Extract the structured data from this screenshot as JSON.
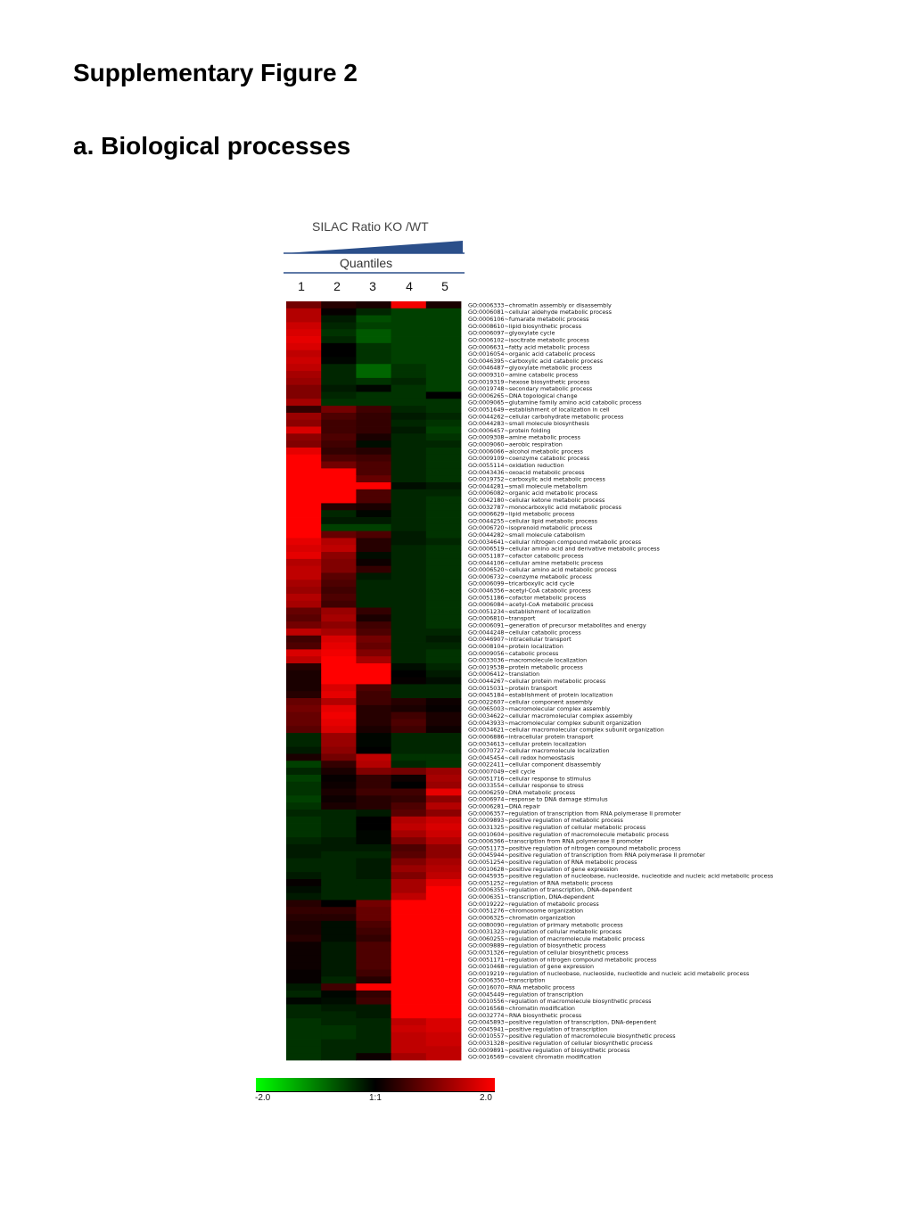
{
  "figure_title": "Supplementary Figure 2",
  "panel_title": "a. Biological processes",
  "header": {
    "title": "SILAC Ratio KO /WT",
    "subheader": "Quantiles",
    "wedge_color": "#2b4f8a"
  },
  "chart_data": {
    "type": "heatmap",
    "title": "",
    "columns": [
      "1",
      "2",
      "3",
      "4",
      "5"
    ],
    "color_scale": {
      "min": -2.0,
      "mid": 0,
      "max": 2.0,
      "labels": [
        "-2.0",
        "1:1",
        "2.0"
      ],
      "low_color": "#00ff00",
      "mid_color": "#000000",
      "high_color": "#ff0000"
    },
    "rows": [
      "GO:0006333~chromatin assembly or disassembly",
      "GO:0006081~cellular aldehyde metabolic process",
      "GO:0006106~fumarate metabolic process",
      "GO:0008610~lipid biosynthetic process",
      "GO:0006097~glyoxylate cycle",
      "GO:0006102~isocitrate metabolic process",
      "GO:0006631~fatty acid metabolic process",
      "GO:0016054~organic acid catabolic process",
      "GO:0046395~carboxylic acid catabolic process",
      "GO:0046487~glyoxylate metabolic process",
      "GO:0009310~amine catabolic process",
      "GO:0019319~hexose biosynthetic process",
      "GO:0019748~secondary metabolic process",
      "GO:0006265~DNA topological change",
      "GO:0009065~glutamine family amino acid catabolic process",
      "GO:0051649~establishment of localization in cell",
      "GO:0044262~cellular carbohydrate metabolic process",
      "GO:0044283~small molecule biosynthesis",
      "GO:0006457~protein folding",
      "GO:0009308~amine metabolic process",
      "GO:0009060~aerobic respiration",
      "GO:0006066~alcohol metabolic process",
      "GO:0009109~coenzyme catabolic process",
      "GO:0055114~oxidation reduction",
      "GO:0043436~oxoacid metabolic process",
      "GO:0019752~carboxylic acid metabolic process",
      "GO:0044281~small molecule metabolism",
      "GO:0006082~organic acid metabolic process",
      "GO:0042180~cellular ketone metabolic process",
      "GO:0032787~monocarboxylic acid metabolic process",
      "GO:0006629~lipid metabolic process",
      "GO:0044255~cellular lipid metabolic process",
      "GO:0006720~isoprenoid metabolic process",
      "GO:0044282~small molecule catabolism",
      "GO:0034641~cellular nitrogen compound metabolic process",
      "GO:0006519~cellular amino acid and derivative metabolic process",
      "GO:0051187~cofactor catabolic process",
      "GO:0044106~cellular amine metabolic process",
      "GO:0006520~cellular amino acid metabolic process",
      "GO:0006732~coenzyme metabolic process",
      "GO:0006099~tricarboxylic acid cycle",
      "GO:0046356~acetyl-CoA catabolic process",
      "GO:0051186~cofactor metabolic process",
      "GO:0006084~acetyl-CoA metabolic process",
      "GO:0051234~establishment of localization",
      "GO:0006810~transport",
      "GO:0006091~generation of precursor metabolites and energy",
      "GO:0044248~cellular catabolic process",
      "GO:0046907~intracellular transport",
      "GO:0008104~protein localization",
      "GO:0009056~catabolic process",
      "GO:0033036~macromolecule localization",
      "GO:0019538~protein metabolic process",
      "GO:0006412~translation",
      "GO:0044267~cellular protein metabolic process",
      "GO:0015031~protein transport",
      "GO:0045184~establishment of protein localization",
      "GO:0022607~cellular component assembly",
      "GO:0065003~macromolecular complex assembly",
      "GO:0034622~cellular macromolecular complex assembly",
      "GO:0043933~macromolecular complex subunit organization",
      "GO:0034621~cellular macromolecular complex subunit organization",
      "GO:0006886~intracellular protein transport",
      "GO:0034613~cellular protein localization",
      "GO:0070727~cellular macromolecule localization",
      "GO:0045454~cell redox homeostasis",
      "GO:0022411~cellular component disassembly",
      "GO:0007049~cell cycle",
      "GO:0051716~cellular response to stimulus",
      "GO:0033554~cellular response to stress",
      "GO:0006259~DNA metabolic process",
      "GO:0006974~response to DNA damage stimulus",
      "GO:0006281~DNA repair",
      "GO:0006357~regulation of transcription from RNA polymerase II promoter",
      "GO:0009893~positive regulation of metabolic process",
      "GO:0031325~positive regulation of cellular metabolic process",
      "GO:0010604~positive regulation of macromolecule metabolic process",
      "GO:0006366~transcription from RNA polymerase II promoter",
      "GO:0051173~positive regulation of nitrogen compound metabolic process",
      "GO:0045944~positive regulation of transcription from RNA polymerase II promoter",
      "GO:0051254~positive regulation of RNA metabolic process",
      "GO:0010628~positive regulation of gene expression",
      "GO:0045935~positive regulation of nucleobase, nucleoside, nucleotide and nucleic acid metabolic process",
      "GO:0051252~regulation of RNA metabolic process",
      "GO:0006355~regulation of transcription, DNA-dependent",
      "GO:0006351~transcription, DNA-dependent",
      "GO:0019222~regulation of metabolic process",
      "GO:0051276~chromosome organization",
      "GO:0006325~chromatin organization",
      "GO:0080090~regulation of primary metabolic process",
      "GO:0031323~regulation of cellular metabolic process",
      "GO:0060255~regulation of macromolecule metabolic process",
      "GO:0009889~regulation of biosynthetic process",
      "GO:0031326~regulation of cellular biosynthetic process",
      "GO:0051171~regulation of nitrogen compound metabolic process",
      "GO:0010468~regulation of gene expression",
      "GO:0019219~regulation of nucleobase, nucleoside, nucleotide and nucleic acid metabolic process",
      "GO:0006350~transcription",
      "GO:0016070~RNA metabolic process",
      "GO:0045449~regulation of transcription",
      "GO:0010556~regulation of macromolecule biosynthetic process",
      "GO:0016568~chromatin modification",
      "GO:0032774~RNA biosynthetic process",
      "GO:0045893~positive regulation of transcription, DNA-dependent",
      "GO:0045941~positive regulation of transcription",
      "GO:0010557~positive regulation of macromolecule biosynthetic process",
      "GO:0031328~positive regulation of cellular biosynthetic process",
      "GO:0009891~positive regulation of biosynthetic process",
      "GO:0016569~covalent chromatin modification"
    ],
    "values": [
      [
        0.9,
        0.3,
        0.2,
        1.9,
        0.2
      ],
      [
        1.4,
        0.05,
        -0.3,
        -0.5,
        -0.5
      ],
      [
        1.4,
        -0.2,
        -0.6,
        -0.5,
        -0.5
      ],
      [
        1.6,
        -0.3,
        -0.5,
        -0.5,
        -0.5
      ],
      [
        1.7,
        -0.4,
        -0.7,
        -0.5,
        -0.5
      ],
      [
        1.8,
        -0.3,
        -0.7,
        -0.5,
        -0.5
      ],
      [
        1.7,
        0.0,
        -0.4,
        -0.5,
        -0.5
      ],
      [
        1.5,
        0.0,
        -0.4,
        -0.5,
        -0.5
      ],
      [
        1.6,
        -0.05,
        -0.4,
        -0.5,
        -0.5
      ],
      [
        1.5,
        -0.3,
        -0.8,
        -0.4,
        -0.5
      ],
      [
        1.3,
        -0.3,
        -0.8,
        -0.4,
        -0.5
      ],
      [
        1.2,
        -0.3,
        -0.4,
        -0.3,
        -0.5
      ],
      [
        1.0,
        -0.2,
        -0.05,
        -0.4,
        -0.5
      ],
      [
        1.0,
        -0.3,
        -0.4,
        -0.4,
        0.0
      ],
      [
        1.3,
        -0.4,
        -0.4,
        -0.4,
        -0.4
      ],
      [
        0.4,
        0.9,
        0.5,
        -0.3,
        -0.4
      ],
      [
        1.2,
        0.6,
        0.4,
        -0.2,
        -0.3
      ],
      [
        1.1,
        0.5,
        0.4,
        -0.3,
        -0.4
      ],
      [
        1.7,
        0.5,
        0.4,
        -0.2,
        -0.5
      ],
      [
        1.1,
        0.6,
        0.2,
        -0.3,
        -0.4
      ],
      [
        1.0,
        0.5,
        -0.1,
        -0.3,
        -0.3
      ],
      [
        1.8,
        0.4,
        0.3,
        -0.3,
        -0.4
      ],
      [
        2.0,
        0.6,
        0.5,
        -0.3,
        -0.4
      ],
      [
        2.0,
        0.9,
        0.6,
        -0.3,
        -0.4
      ],
      [
        2.0,
        2.0,
        0.6,
        -0.3,
        -0.4
      ],
      [
        2.0,
        2.0,
        0.8,
        -0.3,
        -0.4
      ],
      [
        2.0,
        2.0,
        2.0,
        -0.1,
        -0.2
      ],
      [
        2.0,
        2.0,
        0.6,
        -0.3,
        -0.3
      ],
      [
        2.0,
        2.0,
        0.6,
        -0.3,
        -0.4
      ],
      [
        2.0,
        0.3,
        0.2,
        -0.3,
        -0.4
      ],
      [
        2.0,
        -0.3,
        -0.05,
        -0.3,
        -0.4
      ],
      [
        2.0,
        -0.2,
        -0.2,
        -0.3,
        -0.4
      ],
      [
        2.0,
        -0.5,
        -0.5,
        -0.3,
        -0.4
      ],
      [
        2.0,
        0.8,
        0.6,
        -0.2,
        -0.4
      ],
      [
        1.8,
        1.4,
        0.3,
        -0.2,
        -0.3
      ],
      [
        1.7,
        1.5,
        0.3,
        -0.3,
        -0.4
      ],
      [
        1.8,
        1.1,
        -0.1,
        -0.3,
        -0.4
      ],
      [
        1.4,
        1.0,
        0.1,
        -0.3,
        -0.4
      ],
      [
        1.5,
        1.0,
        0.4,
        -0.3,
        -0.4
      ],
      [
        1.5,
        0.7,
        -0.2,
        -0.3,
        -0.4
      ],
      [
        1.3,
        0.6,
        -0.3,
        -0.3,
        -0.4
      ],
      [
        1.2,
        0.5,
        -0.3,
        -0.3,
        -0.4
      ],
      [
        1.4,
        0.6,
        -0.3,
        -0.3,
        -0.4
      ],
      [
        1.3,
        0.5,
        -0.3,
        -0.3,
        -0.4
      ],
      [
        0.8,
        1.2,
        0.4,
        -0.3,
        -0.4
      ],
      [
        0.7,
        1.3,
        0.2,
        -0.3,
        -0.4
      ],
      [
        0.9,
        1.1,
        0.5,
        -0.3,
        -0.4
      ],
      [
        1.5,
        1.3,
        0.6,
        -0.3,
        -0.3
      ],
      [
        0.5,
        1.7,
        0.9,
        -0.3,
        -0.2
      ],
      [
        0.6,
        1.8,
        0.8,
        -0.3,
        -0.3
      ],
      [
        1.7,
        1.9,
        1.0,
        -0.3,
        -0.4
      ],
      [
        1.5,
        2.0,
        1.3,
        -0.3,
        -0.4
      ],
      [
        0.3,
        2.0,
        2.0,
        -0.1,
        -0.3
      ],
      [
        0.2,
        2.0,
        2.0,
        0.0,
        -0.2
      ],
      [
        0.2,
        2.0,
        2.0,
        0.05,
        -0.1
      ],
      [
        0.2,
        1.7,
        0.6,
        -0.3,
        -0.3
      ],
      [
        0.3,
        1.8,
        0.5,
        -0.3,
        -0.3
      ],
      [
        0.8,
        1.4,
        0.5,
        0.3,
        0.1
      ],
      [
        0.9,
        1.8,
        0.3,
        0.2,
        0.05
      ],
      [
        0.8,
        1.9,
        0.3,
        0.5,
        0.2
      ],
      [
        0.8,
        1.8,
        0.3,
        0.6,
        0.2
      ],
      [
        0.7,
        1.7,
        0.2,
        0.5,
        0.1
      ],
      [
        -0.3,
        1.2,
        -0.05,
        -0.3,
        -0.3
      ],
      [
        -0.3,
        1.2,
        -0.05,
        -0.3,
        -0.3
      ],
      [
        -0.2,
        1.1,
        0.0,
        -0.3,
        -0.3
      ],
      [
        0.2,
        0.9,
        1.5,
        -0.4,
        -0.4
      ],
      [
        -0.5,
        0.4,
        1.4,
        -0.3,
        -0.4
      ],
      [
        -0.3,
        0.2,
        1.0,
        0.9,
        1.2
      ],
      [
        -0.5,
        0.05,
        0.4,
        0.1,
        1.3
      ],
      [
        -0.4,
        0.1,
        0.4,
        0.0,
        1.2
      ],
      [
        -0.4,
        0.2,
        0.5,
        0.5,
        1.8
      ],
      [
        -0.5,
        0.1,
        0.3,
        0.4,
        1.1
      ],
      [
        -0.4,
        0.2,
        0.3,
        0.6,
        1.4
      ],
      [
        -0.3,
        -0.3,
        -0.2,
        0.7,
        1.1
      ],
      [
        -0.4,
        -0.3,
        0.0,
        1.4,
        1.6
      ],
      [
        -0.4,
        -0.3,
        0.0,
        1.5,
        1.7
      ],
      [
        -0.4,
        -0.3,
        -0.05,
        1.3,
        1.6
      ],
      [
        -0.3,
        -0.2,
        -0.05,
        1.0,
        1.4
      ],
      [
        -0.2,
        -0.2,
        -0.2,
        0.6,
        1.1
      ],
      [
        -0.2,
        -0.3,
        -0.3,
        0.7,
        1.1
      ],
      [
        -0.3,
        -0.3,
        -0.2,
        1.0,
        1.3
      ],
      [
        -0.3,
        -0.3,
        -0.2,
        1.2,
        1.4
      ],
      [
        -0.2,
        -0.3,
        -0.2,
        1.0,
        1.5
      ],
      [
        0.05,
        -0.3,
        -0.3,
        1.3,
        1.8
      ],
      [
        -0.1,
        -0.3,
        -0.3,
        1.3,
        2.0
      ],
      [
        -0.2,
        -0.3,
        -0.3,
        1.5,
        2.0
      ],
      [
        0.3,
        0.0,
        0.9,
        2.0,
        2.0
      ],
      [
        0.4,
        0.4,
        0.8,
        2.0,
        2.0
      ],
      [
        0.3,
        0.3,
        0.8,
        2.0,
        2.0
      ],
      [
        0.2,
        -0.1,
        0.6,
        2.0,
        2.0
      ],
      [
        0.2,
        -0.1,
        0.5,
        2.0,
        2.0
      ],
      [
        0.3,
        -0.1,
        0.4,
        2.0,
        2.0
      ],
      [
        0.1,
        -0.2,
        0.6,
        2.0,
        2.0
      ],
      [
        0.1,
        -0.2,
        0.6,
        2.0,
        2.0
      ],
      [
        0.1,
        -0.2,
        0.6,
        2.0,
        2.0
      ],
      [
        0.1,
        -0.2,
        0.6,
        2.0,
        2.0
      ],
      [
        0.05,
        -0.2,
        0.5,
        2.0,
        2.0
      ],
      [
        0.05,
        -0.3,
        0.3,
        2.0,
        2.0
      ],
      [
        -0.2,
        0.5,
        2.0,
        2.0,
        2.0
      ],
      [
        -0.3,
        -0.05,
        0.4,
        2.0,
        2.0
      ],
      [
        -0.05,
        -0.1,
        0.5,
        2.0,
        2.0
      ],
      [
        -0.3,
        -0.2,
        -0.2,
        2.0,
        2.0
      ],
      [
        -0.3,
        -0.3,
        -0.2,
        2.0,
        2.0
      ],
      [
        -0.4,
        -0.3,
        -0.3,
        1.5,
        1.7
      ],
      [
        -0.4,
        -0.4,
        -0.3,
        1.6,
        1.7
      ],
      [
        -0.4,
        -0.4,
        -0.3,
        1.5,
        1.6
      ],
      [
        -0.4,
        -0.3,
        -0.3,
        1.5,
        1.6
      ],
      [
        -0.4,
        -0.3,
        -0.3,
        1.5,
        1.5
      ],
      [
        -0.4,
        -0.3,
        0.1,
        1.3,
        1.5
      ]
    ]
  }
}
